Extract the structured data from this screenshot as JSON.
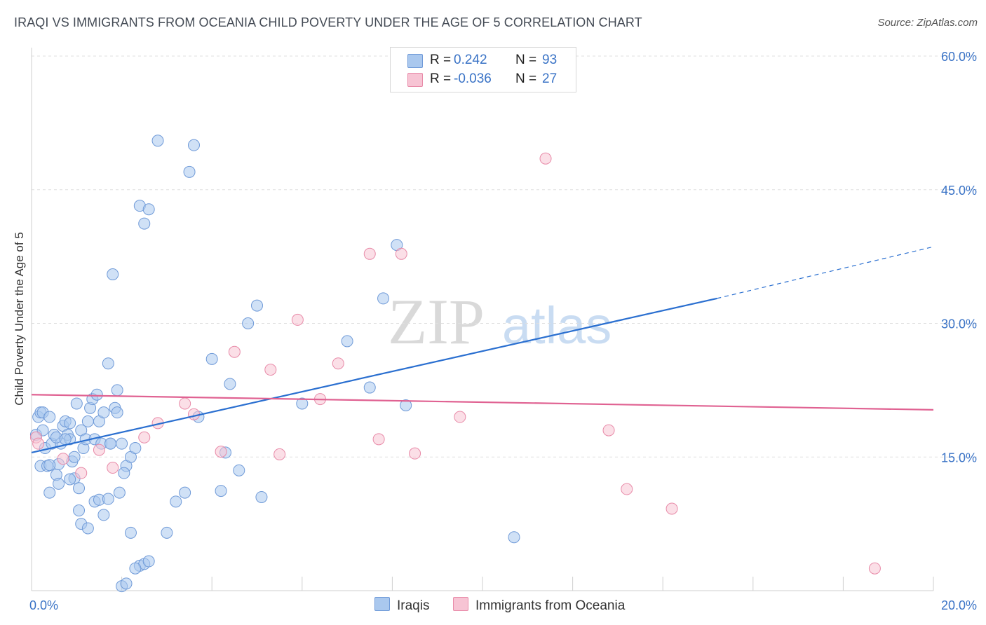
{
  "title": "IRAQI VS IMMIGRANTS FROM OCEANIA CHILD POVERTY UNDER THE AGE OF 5 CORRELATION CHART",
  "source": "Source: ZipAtlas.com",
  "watermark": {
    "zip": "ZIP",
    "atlas": "atlas"
  },
  "legend": [
    {
      "r_label": "R =",
      "r_value": "0.242",
      "n_label": "N =",
      "n_value": "93",
      "color": "#aac8ee",
      "stroke": "#6f9ad8"
    },
    {
      "r_label": "R =",
      "r_value": "-0.036",
      "n_label": "N =",
      "n_value": "27",
      "color": "#f7c4d4",
      "stroke": "#e88aa8"
    }
  ],
  "chart_data": {
    "type": "scatter",
    "xlabel": "",
    "ylabel": "Child Poverty Under the Age of 5",
    "xlim": [
      0,
      20
    ],
    "ylim": [
      0,
      60
    ],
    "x_tick_labels": [
      {
        "value": 0,
        "label": "0.0%"
      },
      {
        "value": 20,
        "label": "20.0%"
      }
    ],
    "y_tick_labels": [
      {
        "value": 15,
        "label": "15.0%"
      },
      {
        "value": 30,
        "label": "30.0%"
      },
      {
        "value": 45,
        "label": "45.0%"
      },
      {
        "value": 60,
        "label": "60.0%"
      }
    ],
    "x_minor_ticks": [
      0,
      2,
      4,
      6,
      8,
      10,
      12,
      14,
      16,
      18,
      20
    ],
    "grid": true,
    "legend_position": "bottom-center",
    "series": [
      {
        "name": "Iraqis",
        "color": "#aac8ee",
        "stroke": "#6f9ad8",
        "trend_color": "#2a6fd0",
        "trend": {
          "x0": 0,
          "y0": 15.5,
          "x1": 15.2,
          "y1": 32.8,
          "dash_to_x": 20,
          "dash_to_y": 38.6
        },
        "points": [
          [
            0.1,
            17.5
          ],
          [
            0.15,
            19.5
          ],
          [
            0.2,
            20
          ],
          [
            0.25,
            18
          ],
          [
            0.3,
            16
          ],
          [
            0.2,
            14
          ],
          [
            0.35,
            14
          ],
          [
            0.4,
            11
          ],
          [
            0.45,
            16.5
          ],
          [
            0.5,
            17.5
          ],
          [
            0.55,
            13
          ],
          [
            0.6,
            12
          ],
          [
            0.65,
            16.5
          ],
          [
            0.7,
            18.5
          ],
          [
            0.75,
            19
          ],
          [
            0.8,
            17.5
          ],
          [
            0.85,
            17
          ],
          [
            0.9,
            14.5
          ],
          [
            0.95,
            15
          ],
          [
            1.0,
            21
          ],
          [
            1.1,
            18
          ],
          [
            1.15,
            16
          ],
          [
            1.2,
            17
          ],
          [
            1.25,
            19
          ],
          [
            1.3,
            20.5
          ],
          [
            1.35,
            21.5
          ],
          [
            1.4,
            17
          ],
          [
            1.45,
            22
          ],
          [
            1.5,
            19
          ],
          [
            1.55,
            16.5
          ],
          [
            1.6,
            20
          ],
          [
            1.7,
            25.5
          ],
          [
            1.75,
            16.5
          ],
          [
            1.8,
            35.5
          ],
          [
            1.85,
            20.5
          ],
          [
            1.9,
            22.5
          ],
          [
            1.95,
            11
          ],
          [
            2.0,
            16.5
          ],
          [
            2.1,
            14
          ],
          [
            2.2,
            15
          ],
          [
            2.3,
            16
          ],
          [
            2.4,
            43.2
          ],
          [
            2.5,
            41.2
          ],
          [
            2.6,
            42.8
          ],
          [
            2.8,
            50.5
          ],
          [
            3.0,
            6.5
          ],
          [
            3.2,
            10
          ],
          [
            3.4,
            11
          ],
          [
            3.5,
            47
          ],
          [
            3.6,
            50
          ],
          [
            3.7,
            19.5
          ],
          [
            4.0,
            26
          ],
          [
            4.2,
            11.2
          ],
          [
            4.3,
            15.5
          ],
          [
            4.4,
            23.2
          ],
          [
            4.6,
            13.5
          ],
          [
            4.8,
            30
          ],
          [
            5.0,
            32
          ],
          [
            5.1,
            10.5
          ],
          [
            6.0,
            21
          ],
          [
            7.0,
            28
          ],
          [
            7.5,
            22.8
          ],
          [
            7.8,
            32.8
          ],
          [
            8.1,
            38.8
          ],
          [
            8.3,
            20.8
          ],
          [
            10.7,
            6
          ],
          [
            0.25,
            20
          ],
          [
            0.4,
            19.5
          ],
          [
            0.55,
            17.2
          ],
          [
            0.6,
            14.2
          ],
          [
            0.75,
            17
          ],
          [
            0.85,
            18.8
          ],
          [
            0.95,
            12.6
          ],
          [
            1.05,
            11.5
          ],
          [
            1.1,
            7.5
          ],
          [
            1.25,
            7
          ],
          [
            1.4,
            10
          ],
          [
            1.5,
            10.2
          ],
          [
            1.6,
            8.5
          ],
          [
            1.7,
            10.3
          ],
          [
            1.75,
            16.5
          ],
          [
            1.9,
            20
          ],
          [
            2.05,
            13.2
          ],
          [
            2.2,
            6.5
          ],
          [
            2.4,
            2.8
          ],
          [
            2.5,
            3
          ],
          [
            2.6,
            3.3
          ],
          [
            2.3,
            2.5
          ],
          [
            2.0,
            0.5
          ],
          [
            2.1,
            0.8
          ],
          [
            0.4,
            14.1
          ],
          [
            0.85,
            12.5
          ],
          [
            1.05,
            9
          ]
        ]
      },
      {
        "name": "Immigrants from Oceania",
        "color": "#f7c4d4",
        "stroke": "#e88aa8",
        "trend_color": "#e06292",
        "trend": {
          "x0": 0,
          "y0": 22,
          "x1": 20,
          "y1": 20.3
        },
        "points": [
          [
            0.1,
            17.2
          ],
          [
            0.15,
            16.5
          ],
          [
            0.7,
            14.8
          ],
          [
            1.1,
            13.2
          ],
          [
            1.5,
            15.8
          ],
          [
            1.8,
            13.8
          ],
          [
            2.5,
            17.2
          ],
          [
            2.8,
            18.8
          ],
          [
            3.4,
            21
          ],
          [
            3.6,
            19.8
          ],
          [
            4.2,
            15.6
          ],
          [
            4.5,
            26.8
          ],
          [
            5.3,
            24.8
          ],
          [
            5.5,
            15.3
          ],
          [
            5.9,
            30.4
          ],
          [
            6.4,
            21.5
          ],
          [
            6.8,
            25.5
          ],
          [
            7.5,
            37.8
          ],
          [
            7.7,
            17
          ],
          [
            8.2,
            37.8
          ],
          [
            8.5,
            15.4
          ],
          [
            9.5,
            19.5
          ],
          [
            11.4,
            48.5
          ],
          [
            12.8,
            18
          ],
          [
            13.2,
            11.4
          ],
          [
            14.2,
            9.2
          ],
          [
            18.7,
            2.5
          ]
        ]
      }
    ]
  }
}
